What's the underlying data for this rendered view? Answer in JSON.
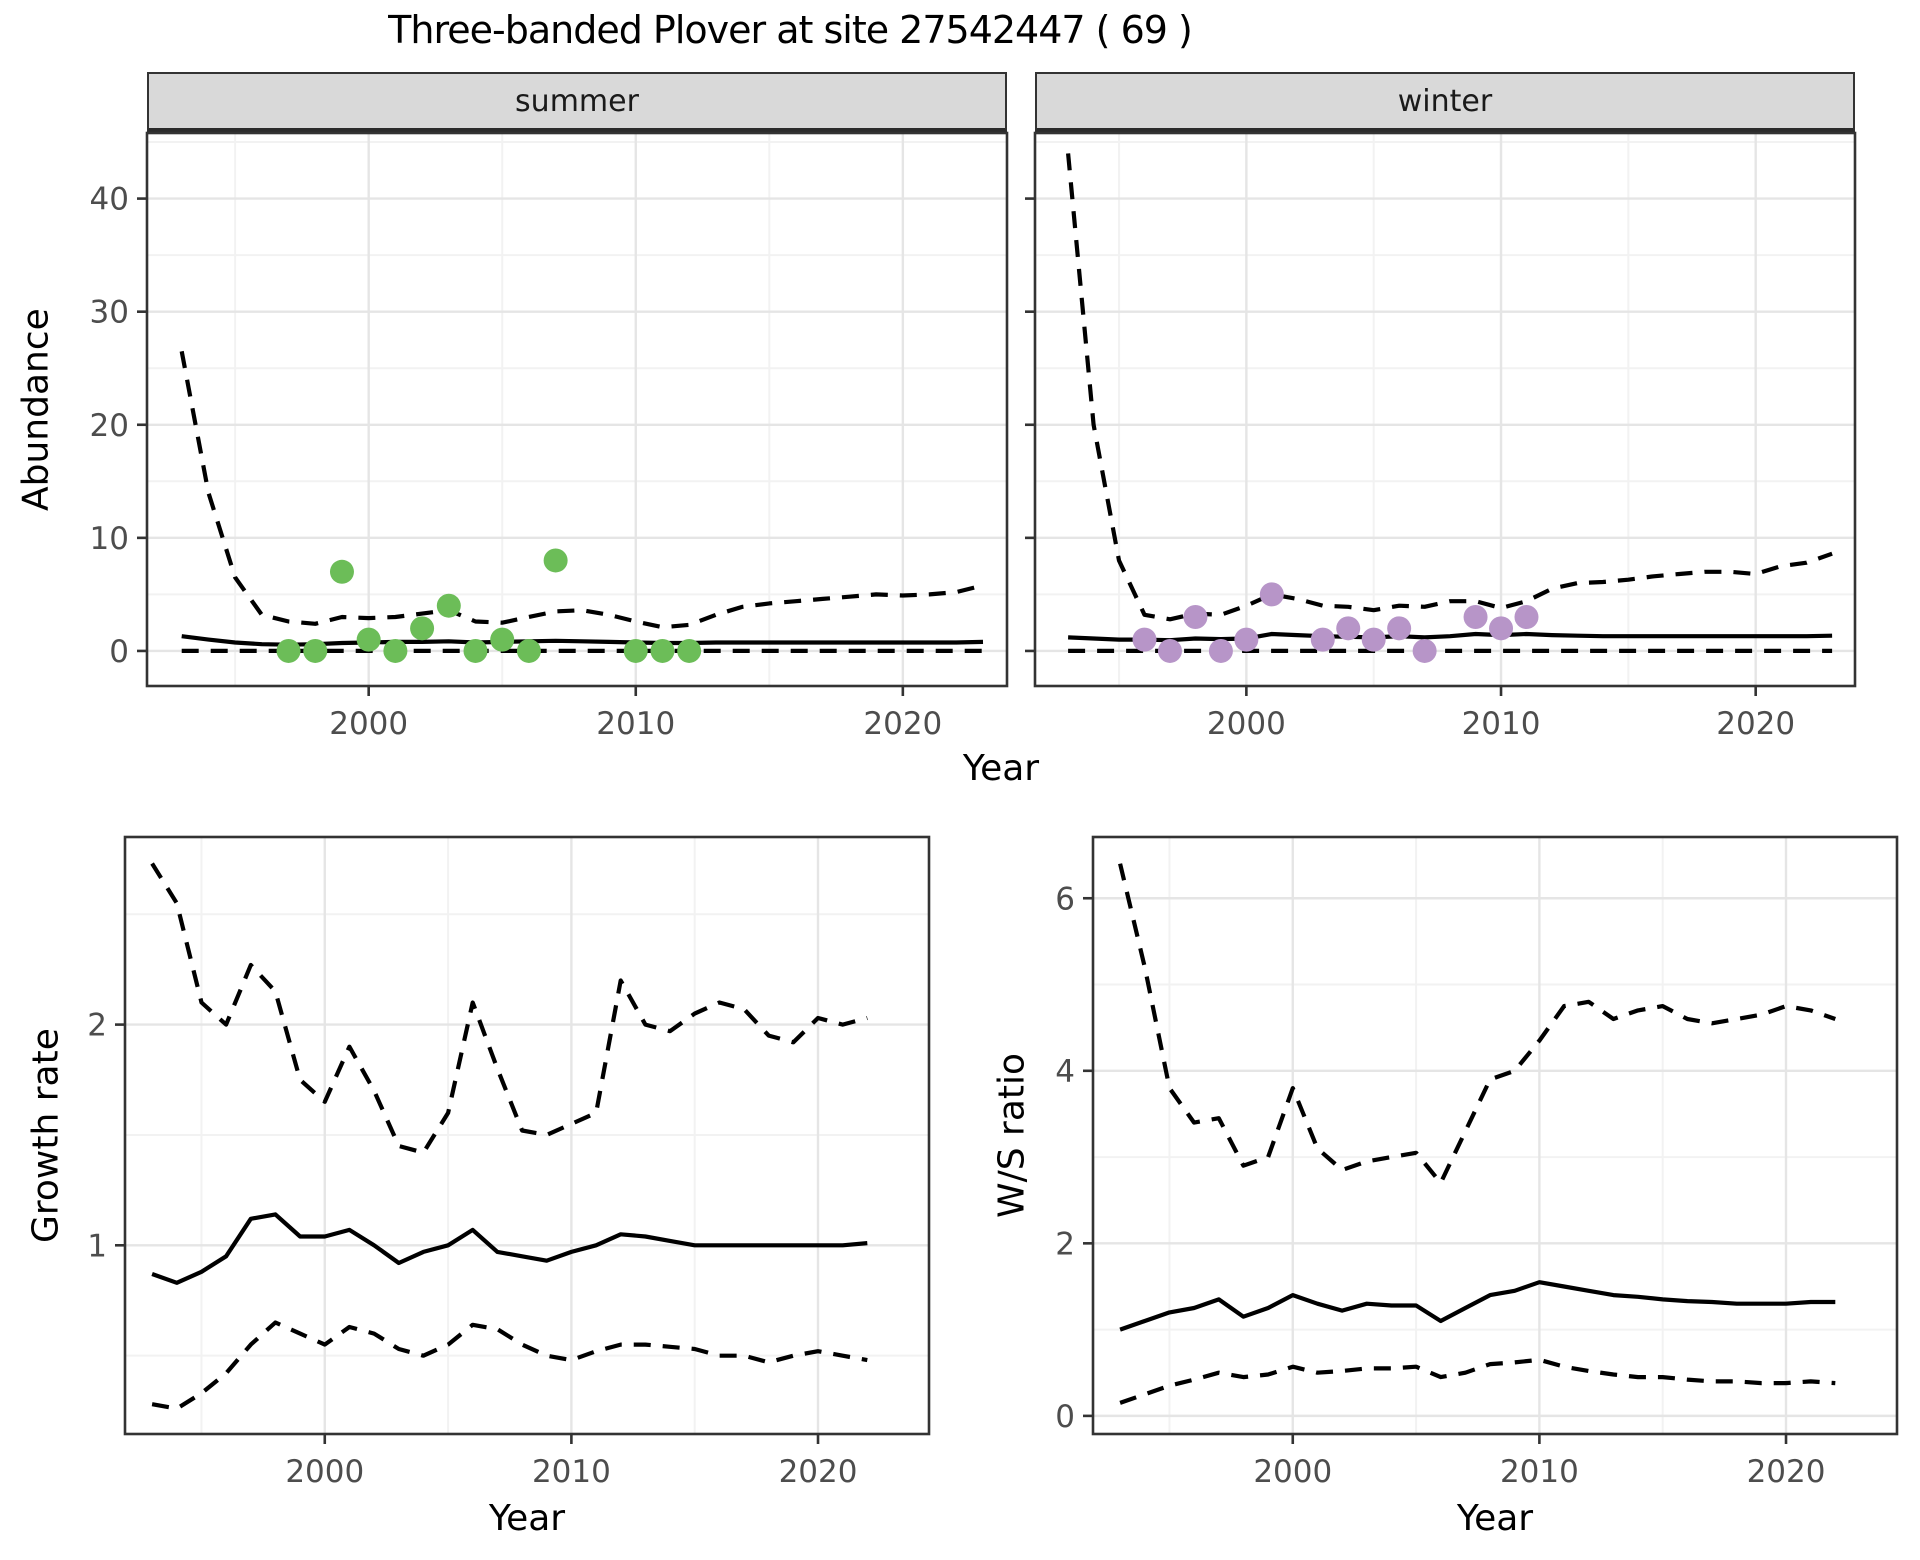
{
  "title": "Three-banded Plover at site 27542447 ( 69 )",
  "colors": {
    "summer_points": "#6CBD58",
    "winter_points": "#B795C8",
    "line": "#000000",
    "strip_background": "#d9d9d9",
    "panel_border": "#333333",
    "grid_major": "#e5e5e5",
    "grid_minor": "#f2f2f2",
    "tick_text": "#4d4d4d"
  },
  "axis_titles": {
    "abundance": "Abundance",
    "year_top": "Year",
    "growth_rate": "Growth rate",
    "ws_ratio": "W/S ratio",
    "year_growth": "Year",
    "year_ws": "Year"
  },
  "chart_data": [
    {
      "id": "abundance-summer",
      "type": "line",
      "facet_label": "summer",
      "xlabel": "Year",
      "ylabel": "Abundance",
      "xlim": [
        1991.7,
        2023.9
      ],
      "ylim": [
        -3.1,
        45.8
      ],
      "xticks": [
        2000,
        2010,
        2020
      ],
      "xticks_minor": [
        1995,
        2005,
        2015
      ],
      "yticks": [
        0,
        10,
        20,
        30,
        40
      ],
      "yticks_minor": [
        5,
        15,
        25,
        35,
        45
      ],
      "x": [
        1993,
        1994,
        1995,
        1996,
        1997,
        1998,
        1999,
        2000,
        2001,
        2002,
        2003,
        2004,
        2005,
        2006,
        2007,
        2008,
        2009,
        2010,
        2011,
        2012,
        2013,
        2014,
        2015,
        2016,
        2017,
        2018,
        2019,
        2020,
        2021,
        2022,
        2023
      ],
      "series": [
        {
          "name": "upper-95ci",
          "linetype": "dashed",
          "values": [
            26.5,
            14,
            6.5,
            3.2,
            2.6,
            2.4,
            3.0,
            2.9,
            3.0,
            3.3,
            3.6,
            2.6,
            2.5,
            3.0,
            3.5,
            3.6,
            3.2,
            2.6,
            2.1,
            2.3,
            3.2,
            3.9,
            4.2,
            4.4,
            4.6,
            4.8,
            5.0,
            4.9,
            5.0,
            5.2,
            5.8
          ]
        },
        {
          "name": "lower-95ci",
          "linetype": "dashed",
          "values": [
            0,
            0,
            0,
            0,
            0,
            0,
            0,
            0,
            0,
            0,
            0,
            0,
            0,
            0,
            0,
            0,
            0,
            0,
            0,
            0,
            0,
            0,
            0,
            0,
            0,
            0,
            0,
            0,
            0,
            0,
            0
          ]
        },
        {
          "name": "median",
          "linetype": "solid",
          "values": [
            1.3,
            1.0,
            0.75,
            0.6,
            0.55,
            0.6,
            0.7,
            0.75,
            0.8,
            0.8,
            0.85,
            0.75,
            0.8,
            0.85,
            0.9,
            0.85,
            0.8,
            0.75,
            0.7,
            0.7,
            0.75,
            0.75,
            0.75,
            0.75,
            0.75,
            0.75,
            0.75,
            0.75,
            0.75,
            0.75,
            0.8
          ]
        }
      ],
      "points": {
        "name": "observed-counts-summer",
        "color": "#6CBD58",
        "data": [
          [
            1997,
            0
          ],
          [
            1998,
            0
          ],
          [
            1999,
            7
          ],
          [
            2000,
            1
          ],
          [
            2001,
            0
          ],
          [
            2002,
            2
          ],
          [
            2003,
            4
          ],
          [
            2004,
            0
          ],
          [
            2005,
            1
          ],
          [
            2006,
            0
          ],
          [
            2007,
            8
          ],
          [
            2010,
            0
          ],
          [
            2011,
            0
          ],
          [
            2012,
            0
          ]
        ]
      }
    },
    {
      "id": "abundance-winter",
      "type": "line",
      "facet_label": "winter",
      "xlabel": "Year",
      "ylabel": "Abundance",
      "xlim": [
        1991.7,
        2023.9
      ],
      "ylim": [
        -3.1,
        45.8
      ],
      "xticks": [
        2000,
        2010,
        2020
      ],
      "xticks_minor": [
        1995,
        2005,
        2015
      ],
      "yticks": [
        0,
        10,
        20,
        30,
        40
      ],
      "yticks_minor": [
        5,
        15,
        25,
        35,
        45
      ],
      "x": [
        1993,
        1994,
        1995,
        1996,
        1997,
        1998,
        1999,
        2000,
        2001,
        2002,
        2003,
        2004,
        2005,
        2006,
        2007,
        2008,
        2009,
        2010,
        2011,
        2012,
        2013,
        2014,
        2015,
        2016,
        2017,
        2018,
        2019,
        2020,
        2021,
        2022,
        2023
      ],
      "series": [
        {
          "name": "upper-95ci",
          "linetype": "dashed",
          "values": [
            44,
            20,
            8,
            3.2,
            2.8,
            3.3,
            3.2,
            4.0,
            5.0,
            4.6,
            4.0,
            3.9,
            3.6,
            4.0,
            3.9,
            4.4,
            4.4,
            3.8,
            4.4,
            5.5,
            6.0,
            6.1,
            6.3,
            6.6,
            6.8,
            7.0,
            7.0,
            6.8,
            7.5,
            7.8,
            8.6
          ]
        },
        {
          "name": "lower-95ci",
          "linetype": "dashed",
          "values": [
            0,
            0,
            0,
            0,
            0,
            0,
            0,
            0,
            0,
            0,
            0,
            0,
            0,
            0,
            0,
            0,
            0,
            0,
            0,
            0,
            0,
            0,
            0,
            0,
            0,
            0,
            0,
            0,
            0,
            0,
            0
          ]
        },
        {
          "name": "median",
          "linetype": "solid",
          "values": [
            1.2,
            1.1,
            1.0,
            1.0,
            0.95,
            1.1,
            1.05,
            1.1,
            1.5,
            1.4,
            1.3,
            1.25,
            1.2,
            1.3,
            1.2,
            1.3,
            1.5,
            1.4,
            1.5,
            1.4,
            1.35,
            1.3,
            1.3,
            1.3,
            1.3,
            1.3,
            1.3,
            1.3,
            1.3,
            1.3,
            1.35
          ]
        }
      ],
      "points": {
        "name": "observed-counts-winter",
        "color": "#B795C8",
        "data": [
          [
            1996,
            1
          ],
          [
            1997,
            0
          ],
          [
            1998,
            3
          ],
          [
            1999,
            0
          ],
          [
            2000,
            1
          ],
          [
            2001,
            5
          ],
          [
            2003,
            1
          ],
          [
            2004,
            2
          ],
          [
            2005,
            1
          ],
          [
            2006,
            2
          ],
          [
            2007,
            0
          ],
          [
            2009,
            3
          ],
          [
            2010,
            2
          ],
          [
            2011,
            3
          ]
        ]
      }
    },
    {
      "id": "growth-rate",
      "type": "line",
      "facet_label": "",
      "xlabel": "Year",
      "ylabel": "Growth rate",
      "xlim": [
        1991.9,
        2024.5
      ],
      "ylim": [
        0.145,
        2.85
      ],
      "xticks": [
        2000,
        2010,
        2020
      ],
      "xticks_minor": [
        1995,
        2005,
        2015
      ],
      "yticks": [
        1,
        2
      ],
      "yticks_minor": [
        0.5,
        1.5,
        2.5
      ],
      "x": [
        1993,
        1994,
        1995,
        1996,
        1997,
        1998,
        1999,
        2000,
        2001,
        2002,
        2003,
        2004,
        2005,
        2006,
        2007,
        2008,
        2009,
        2010,
        2011,
        2012,
        2013,
        2014,
        2015,
        2016,
        2017,
        2018,
        2019,
        2020,
        2021,
        2022
      ],
      "series": [
        {
          "name": "upper-95ci",
          "linetype": "dashed",
          "values": [
            2.73,
            2.55,
            2.1,
            2.0,
            2.27,
            2.15,
            1.75,
            1.65,
            1.9,
            1.7,
            1.45,
            1.42,
            1.6,
            2.1,
            1.8,
            1.52,
            1.5,
            1.55,
            1.6,
            2.2,
            2.0,
            1.97,
            2.05,
            2.1,
            2.07,
            1.95,
            1.92,
            2.03,
            2.0,
            2.03
          ]
        },
        {
          "name": "lower-95ci",
          "linetype": "dashed",
          "values": [
            0.28,
            0.26,
            0.33,
            0.42,
            0.55,
            0.65,
            0.6,
            0.55,
            0.63,
            0.6,
            0.53,
            0.5,
            0.55,
            0.64,
            0.62,
            0.55,
            0.5,
            0.48,
            0.52,
            0.55,
            0.55,
            0.54,
            0.53,
            0.5,
            0.5,
            0.47,
            0.5,
            0.52,
            0.5,
            0.48
          ]
        },
        {
          "name": "median",
          "linetype": "solid",
          "values": [
            0.87,
            0.83,
            0.88,
            0.95,
            1.12,
            1.14,
            1.04,
            1.04,
            1.07,
            1.0,
            0.92,
            0.97,
            1.0,
            1.07,
            0.97,
            0.95,
            0.93,
            0.97,
            1.0,
            1.05,
            1.04,
            1.02,
            1.0,
            1.0,
            1.0,
            1.0,
            1.0,
            1.0,
            1.0,
            1.01
          ]
        }
      ],
      "points": null
    },
    {
      "id": "ws-ratio",
      "type": "line",
      "facet_label": "",
      "xlabel": "Year",
      "ylabel": "W/S ratio",
      "xlim": [
        1991.9,
        2024.5
      ],
      "ylim": [
        -0.21,
        6.71
      ],
      "xticks": [
        2000,
        2010,
        2020
      ],
      "xticks_minor": [
        1995,
        2005,
        2015
      ],
      "yticks": [
        0,
        2,
        4,
        6
      ],
      "yticks_minor": [
        1,
        3,
        5
      ],
      "x": [
        1993,
        1994,
        1995,
        1996,
        1997,
        1998,
        1999,
        2000,
        2001,
        2002,
        2003,
        2004,
        2005,
        2006,
        2007,
        2008,
        2009,
        2010,
        2011,
        2012,
        2013,
        2014,
        2015,
        2016,
        2017,
        2018,
        2019,
        2020,
        2021,
        2022
      ],
      "series": [
        {
          "name": "upper-95ci",
          "linetype": "dashed",
          "values": [
            6.4,
            5.2,
            3.8,
            3.4,
            3.45,
            2.9,
            3.0,
            3.8,
            3.1,
            2.85,
            2.95,
            3.0,
            3.05,
            2.7,
            3.3,
            3.9,
            4.0,
            4.35,
            4.75,
            4.8,
            4.6,
            4.7,
            4.75,
            4.6,
            4.55,
            4.6,
            4.65,
            4.75,
            4.7,
            4.6
          ]
        },
        {
          "name": "lower-95ci",
          "linetype": "dashed",
          "values": [
            0.15,
            0.25,
            0.35,
            0.42,
            0.5,
            0.45,
            0.48,
            0.57,
            0.5,
            0.52,
            0.55,
            0.55,
            0.57,
            0.45,
            0.5,
            0.6,
            0.62,
            0.65,
            0.57,
            0.52,
            0.48,
            0.45,
            0.45,
            0.42,
            0.4,
            0.4,
            0.38,
            0.38,
            0.4,
            0.38
          ]
        },
        {
          "name": "median",
          "linetype": "solid",
          "values": [
            1.0,
            1.1,
            1.2,
            1.25,
            1.35,
            1.15,
            1.25,
            1.4,
            1.3,
            1.22,
            1.3,
            1.28,
            1.28,
            1.1,
            1.25,
            1.4,
            1.45,
            1.55,
            1.5,
            1.45,
            1.4,
            1.38,
            1.35,
            1.33,
            1.32,
            1.3,
            1.3,
            1.3,
            1.32,
            1.32
          ]
        }
      ],
      "points": null
    }
  ]
}
